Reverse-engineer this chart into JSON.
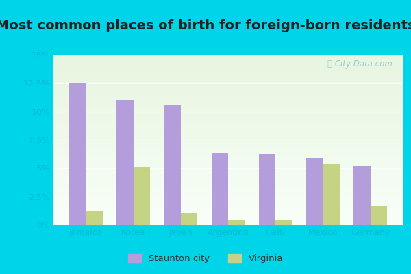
{
  "title": "Most common places of birth for foreign-born residents",
  "categories": [
    "Jamaica",
    "Korea",
    "Japan",
    "Argentina",
    "Haiti",
    "Mexico",
    "Germany"
  ],
  "staunton_values": [
    12.5,
    11.0,
    10.5,
    6.3,
    6.2,
    5.9,
    5.2
  ],
  "virginia_values": [
    1.2,
    5.1,
    1.0,
    0.4,
    0.4,
    5.3,
    1.7
  ],
  "staunton_color": "#b39ddb",
  "virginia_color": "#c5d484",
  "background_outer": "#00d4e8",
  "background_inner_top": "#e8f5e9",
  "background_inner_bottom": "#f5fff5",
  "ylim": [
    0,
    15
  ],
  "yticks": [
    0,
    2.5,
    5.0,
    7.5,
    10.0,
    12.5,
    15.0
  ],
  "legend_staunton": "Staunton city",
  "legend_virginia": "Virginia",
  "title_fontsize": 14,
  "bar_width": 0.35,
  "grid_color": "#ffffff",
  "watermark_text": "ⓘ City-Data.com",
  "tick_color": "#00bcd4",
  "label_color": "#00bcd4"
}
